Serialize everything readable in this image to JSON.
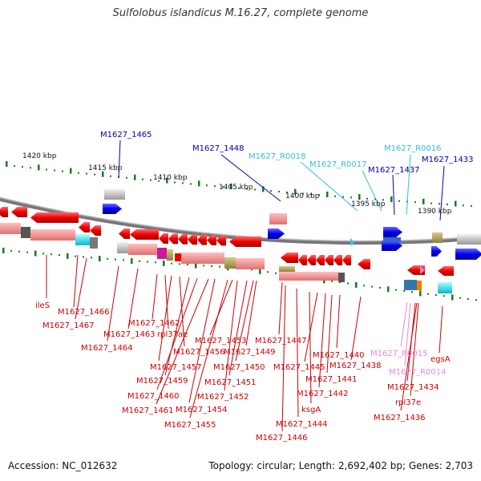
{
  "title": "Sulfolobus islandicus M.16.27, complete genome",
  "footer": {
    "accession_label": "Accession: NC_012632",
    "summary": "Topology: circular; Length: 2,692,402 bp; Genes: 2,703"
  },
  "ruler_ticks": [
    "1420 kbp",
    "1415 kbp",
    "1410 kbp",
    "1405 kbp",
    "1400 kbp",
    "1395 kbp",
    "1390 kbp"
  ],
  "colors": {
    "plus_strand_cds": "#0000ee",
    "minus_strand_cds": "#ee0000",
    "plus_rna": "#33ccee",
    "minus_rna": "#ee88cc",
    "backbone": "#888888",
    "tick_green": "#1a7a1a"
  },
  "upper_labels": [
    {
      "text": "M1627_1465",
      "color": "#0000aa"
    },
    {
      "text": "M1627_1448",
      "color": "#0000aa"
    },
    {
      "text": "M1627_R0018",
      "color": "#33bbdd"
    },
    {
      "text": "M1627_R0017",
      "color": "#33bbdd"
    },
    {
      "text": "M1627_R0016",
      "color": "#33bbdd"
    },
    {
      "text": "M1627_1437",
      "color": "#0000aa"
    },
    {
      "text": "M1627_1433",
      "color": "#0000aa"
    }
  ],
  "lower_labels": [
    {
      "text": "ileS",
      "color": "#cc0000"
    },
    {
      "text": "M1627_1466",
      "color": "#cc0000"
    },
    {
      "text": "M1627_1467",
      "color": "#cc0000"
    },
    {
      "text": "M1627_1464",
      "color": "#cc0000"
    },
    {
      "text": "M1627_1463",
      "color": "#cc0000"
    },
    {
      "text": "M1627_1462",
      "color": "#cc0000"
    },
    {
      "text": "rpl37ae",
      "color": "#cc0000"
    },
    {
      "text": "M1627_1457",
      "color": "#cc0000"
    },
    {
      "text": "M1627_1456",
      "color": "#cc0000"
    },
    {
      "text": "M1627_1459",
      "color": "#cc0000"
    },
    {
      "text": "M1627_1460",
      "color": "#cc0000"
    },
    {
      "text": "M1627_1461",
      "color": "#cc0000"
    },
    {
      "text": "M1627_1454",
      "color": "#cc0000"
    },
    {
      "text": "M1627_1455",
      "color": "#cc0000"
    },
    {
      "text": "M1627_1453",
      "color": "#cc0000"
    },
    {
      "text": "M1627_1452",
      "color": "#cc0000"
    },
    {
      "text": "M1627_1451",
      "color": "#cc0000"
    },
    {
      "text": "M1627_1450",
      "color": "#cc0000"
    },
    {
      "text": "M1627_1449",
      "color": "#cc0000"
    },
    {
      "text": "M1627_1447",
      "color": "#cc0000"
    },
    {
      "text": "M1627_1446",
      "color": "#cc0000"
    },
    {
      "text": "M1627_1444",
      "color": "#cc0000"
    },
    {
      "text": "ksgA",
      "color": "#cc0000"
    },
    {
      "text": "M1627_1445",
      "color": "#cc0000"
    },
    {
      "text": "M1627_1442",
      "color": "#cc0000"
    },
    {
      "text": "M1627_1441",
      "color": "#cc0000"
    },
    {
      "text": "M1627_1440",
      "color": "#cc0000"
    },
    {
      "text": "M1627_1438",
      "color": "#cc0000"
    },
    {
      "text": "M1627_R0015",
      "color": "#ee88cc"
    },
    {
      "text": "M1627_R0014",
      "color": "#ee88cc"
    },
    {
      "text": "M1627_1434",
      "color": "#cc0000"
    },
    {
      "text": "rpl37e",
      "color": "#cc0000"
    },
    {
      "text": "M1627_1436",
      "color": "#cc0000"
    },
    {
      "text": "egsA",
      "color": "#cc0000"
    }
  ]
}
